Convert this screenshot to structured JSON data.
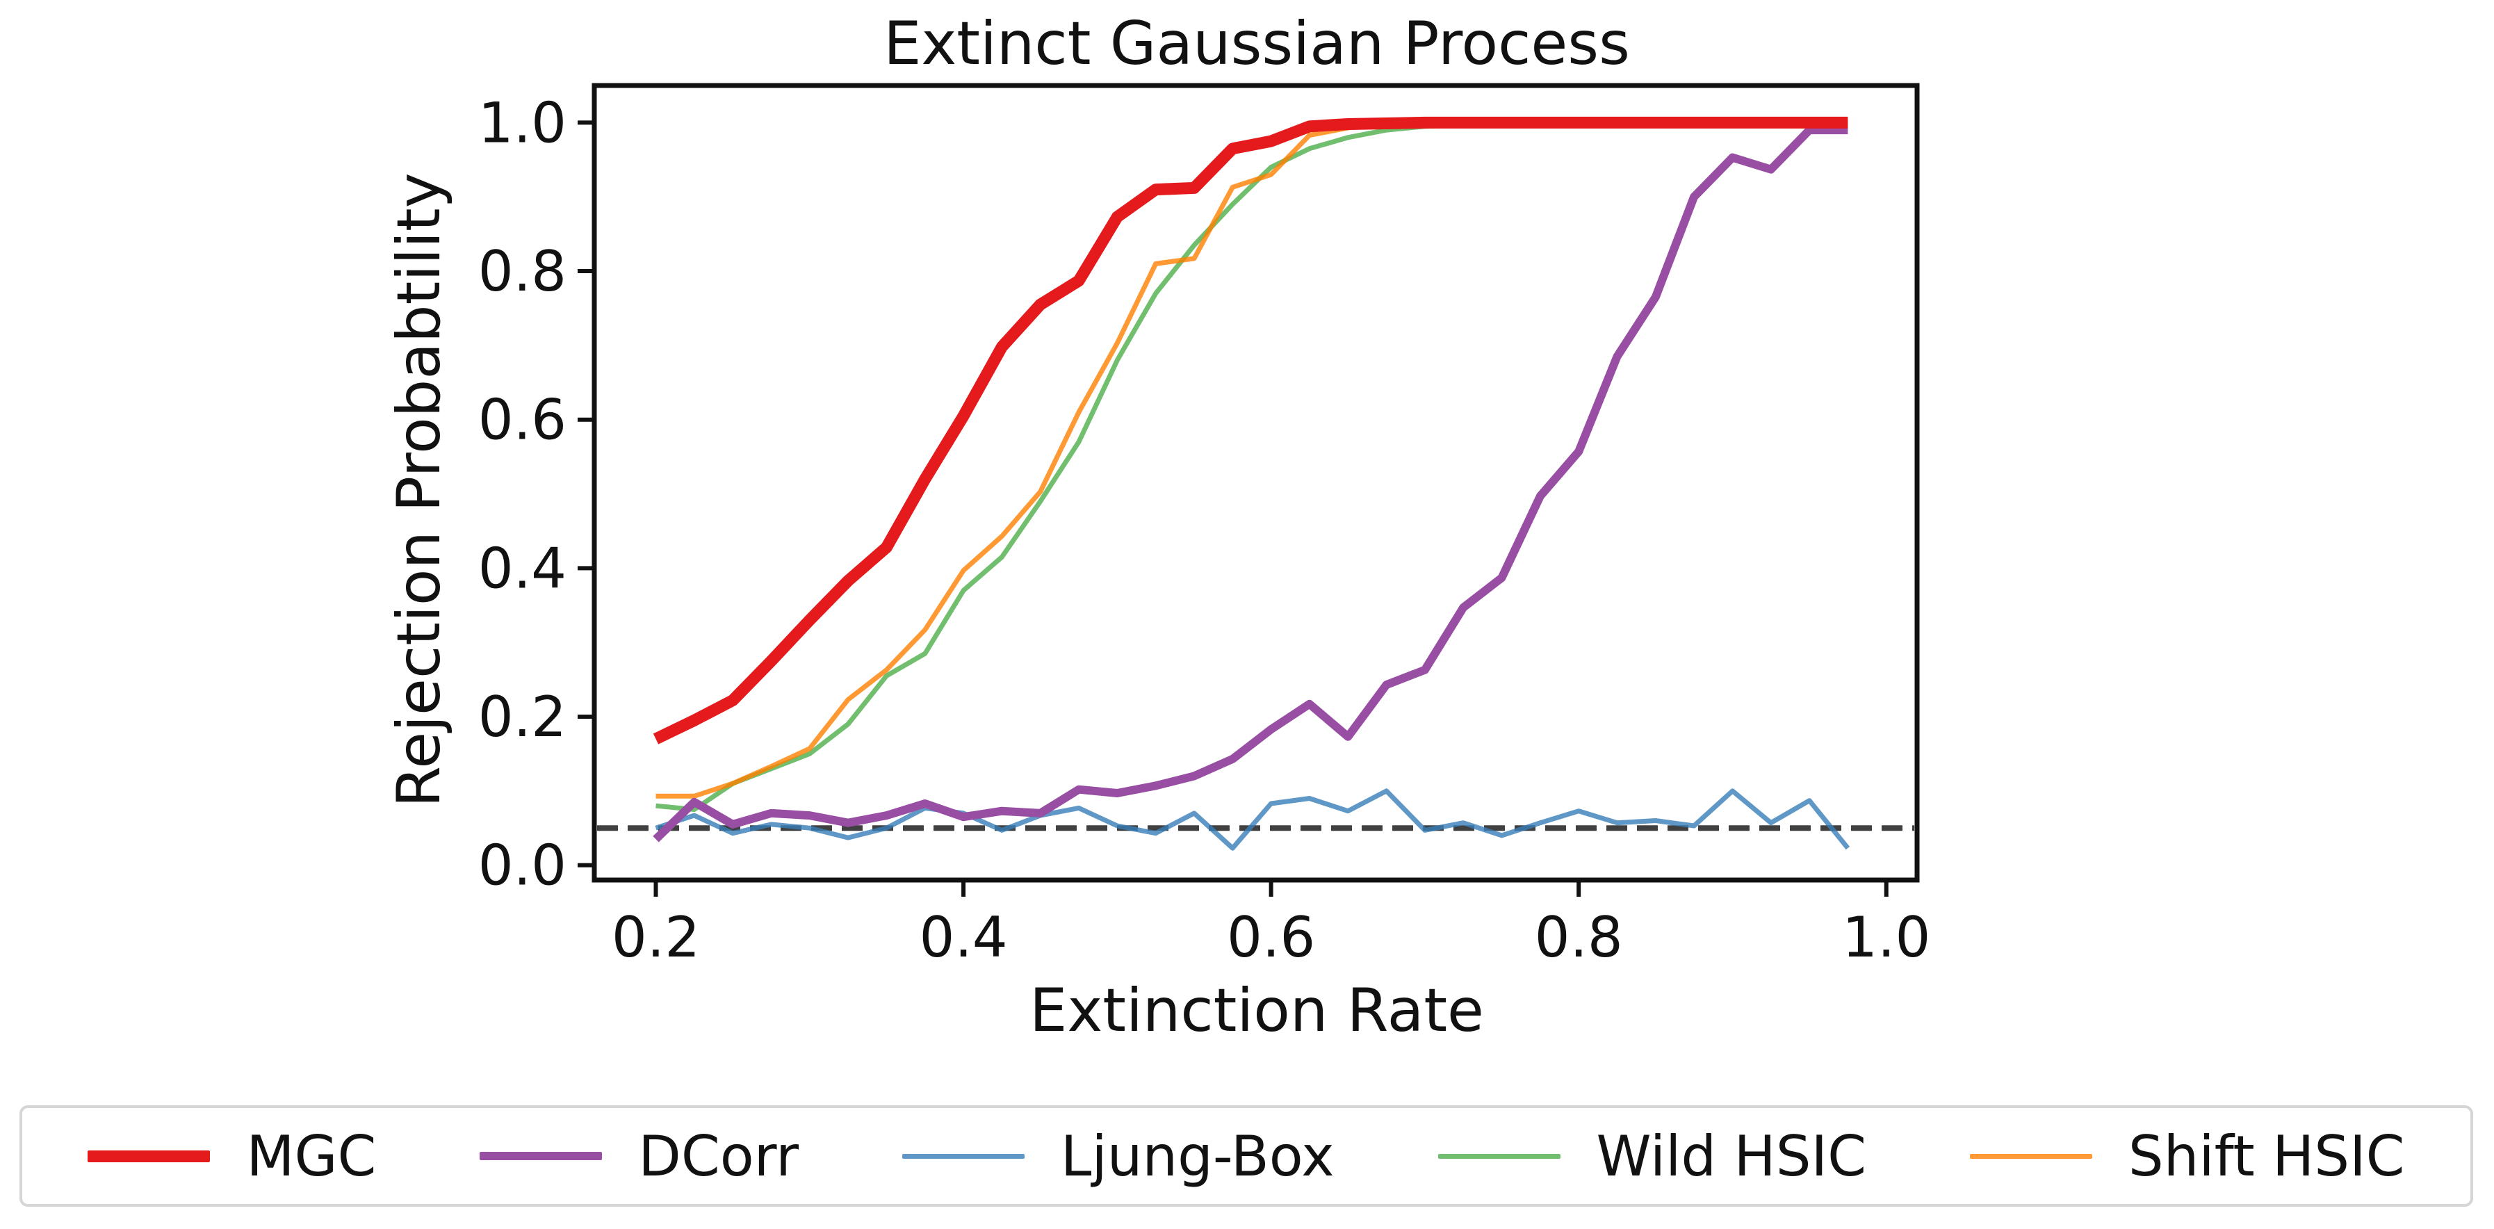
{
  "chart_data": {
    "type": "line",
    "title": "Extinct Gaussian Process",
    "xlabel": "Extinction Rate",
    "ylabel": "Rejection Probabtility",
    "xlim": [
      0.16,
      1.02
    ],
    "ylim": [
      -0.02,
      1.05
    ],
    "xticks": [
      "0.2",
      "0.4",
      "0.6",
      "0.8",
      "1.0"
    ],
    "xtick_values": [
      0.2,
      0.4,
      0.6,
      0.8,
      1.0
    ],
    "yticks": [
      "0.0",
      "0.2",
      "0.4",
      "0.6",
      "0.8",
      "1.0"
    ],
    "ytick_values": [
      0.0,
      0.2,
      0.4,
      0.6,
      0.8,
      1.0
    ],
    "grid": false,
    "legend_placement": "below",
    "reference_line": {
      "y": 0.05,
      "style": "dashed",
      "color": "#404040"
    },
    "x": [
      0.2,
      0.225,
      0.25,
      0.275,
      0.3,
      0.325,
      0.35,
      0.375,
      0.4,
      0.425,
      0.45,
      0.475,
      0.5,
      0.525,
      0.55,
      0.575,
      0.6,
      0.625,
      0.65,
      0.675,
      0.7,
      0.725,
      0.75,
      0.775,
      0.8,
      0.825,
      0.85,
      0.875,
      0.9,
      0.925,
      0.95,
      0.975
    ],
    "series": [
      {
        "name": "MGC",
        "color": "#e41a1c",
        "width": "thick",
        "values": [
          0.17,
          0.195,
          0.222,
          0.275,
          0.33,
          0.383,
          0.428,
          0.52,
          0.605,
          0.698,
          0.755,
          0.787,
          0.873,
          0.91,
          0.912,
          0.965,
          0.975,
          0.995,
          0.998,
          0.999,
          1.0,
          1.0,
          1.0,
          1.0,
          1.0,
          1.0,
          1.0,
          1.0,
          1.0,
          1.0,
          1.0,
          1.0
        ]
      },
      {
        "name": "DCorr",
        "color": "#984ea3",
        "width": "medium",
        "values": [
          0.035,
          0.085,
          0.055,
          0.07,
          0.067,
          0.057,
          0.067,
          0.083,
          0.065,
          0.073,
          0.07,
          0.102,
          0.097,
          0.107,
          0.12,
          0.143,
          0.183,
          0.217,
          0.173,
          0.243,
          0.263,
          0.347,
          0.387,
          0.497,
          0.557,
          0.685,
          0.765,
          0.9,
          0.953,
          0.937,
          0.99,
          0.99
        ]
      },
      {
        "name": "Ljung-Box",
        "color": "#377eb8",
        "width": "thin",
        "values": [
          0.05,
          0.067,
          0.043,
          0.055,
          0.05,
          0.037,
          0.05,
          0.077,
          0.07,
          0.047,
          0.067,
          0.077,
          0.053,
          0.043,
          0.07,
          0.023,
          0.083,
          0.09,
          0.073,
          0.1,
          0.047,
          0.057,
          0.04,
          0.057,
          0.073,
          0.057,
          0.06,
          0.053,
          0.1,
          0.057,
          0.087,
          0.023
        ]
      },
      {
        "name": "Wild HSIC",
        "color": "#4daf4a",
        "width": "thin",
        "values": [
          0.08,
          0.075,
          0.11,
          0.13,
          0.15,
          0.19,
          0.255,
          0.285,
          0.37,
          0.415,
          0.49,
          0.57,
          0.68,
          0.77,
          0.835,
          0.89,
          0.94,
          0.965,
          0.98,
          0.99,
          0.995,
          0.997,
          0.998,
          1.0,
          1.0,
          1.0,
          1.0,
          1.0,
          1.0,
          1.0,
          1.0,
          1.0
        ]
      },
      {
        "name": "Shift HSIC",
        "color": "#ff7f00",
        "width": "thin",
        "values": [
          0.093,
          0.093,
          0.11,
          0.133,
          0.157,
          0.223,
          0.263,
          0.317,
          0.397,
          0.443,
          0.503,
          0.61,
          0.703,
          0.81,
          0.817,
          0.913,
          0.93,
          0.983,
          0.993,
          0.997,
          1.0,
          1.0,
          1.0,
          1.0,
          1.0,
          1.0,
          1.0,
          1.0,
          1.0,
          1.0,
          1.0,
          1.0
        ]
      }
    ]
  }
}
